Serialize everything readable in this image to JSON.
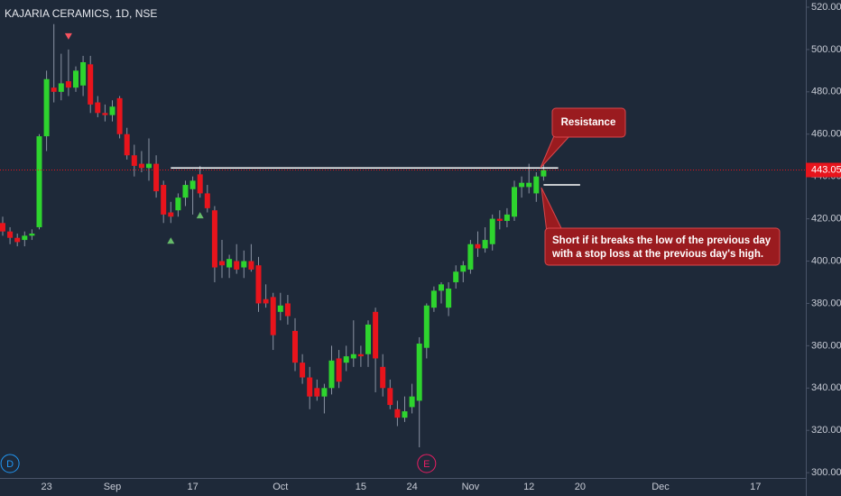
{
  "chart_data": {
    "type": "candlestick",
    "title": "KAJARIA CERAMICS, 1D, NSE",
    "categories": [
      null,
      null,
      null,
      null,
      null,
      null,
      "23",
      null,
      null,
      null,
      null,
      null,
      null,
      null,
      null,
      "Sep",
      null,
      null,
      null,
      null,
      null,
      null,
      null,
      null,
      null,
      null,
      "17",
      null,
      null,
      null,
      null,
      null,
      null,
      null,
      null,
      null,
      null,
      null,
      "Oct",
      null,
      null,
      null,
      null,
      null,
      null,
      null,
      null,
      null,
      null,
      "15",
      null,
      null,
      null,
      null,
      null,
      null,
      "24",
      null,
      null,
      null,
      null,
      null,
      null,
      null,
      "Nov",
      null,
      null,
      null,
      null,
      null,
      null,
      null,
      "12",
      null,
      null,
      null,
      null,
      null,
      null,
      "20",
      null,
      null,
      null,
      null,
      null,
      null,
      null,
      null,
      null,
      null,
      "Dec",
      null,
      null,
      null,
      null,
      null,
      null,
      null,
      null,
      null,
      null,
      null,
      null,
      "17",
      null,
      null,
      null,
      null,
      null,
      null
    ],
    "open": [
      418,
      414,
      411,
      410,
      412,
      416,
      459,
      482,
      480,
      485,
      482,
      483,
      493,
      475,
      470,
      469,
      477,
      460,
      450,
      446,
      444,
      446,
      436,
      423,
      424,
      430,
      434,
      441,
      432,
      424,
      400,
      397,
      400,
      397,
      400,
      398,
      382,
      383,
      376,
      380,
      367,
      352,
      345,
      340,
      336,
      340,
      354,
      352,
      354,
      356,
      356,
      376,
      350,
      340,
      330,
      326,
      331,
      334,
      359,
      378,
      386,
      378,
      390,
      395,
      396,
      408,
      406,
      408,
      420,
      419,
      421,
      435,
      435,
      432,
      440,
      null,
      null,
      null,
      null,
      null,
      null,
      null,
      null,
      null,
      null,
      null,
      null,
      null,
      null,
      null,
      null,
      null,
      null,
      null,
      null,
      null,
      null,
      null,
      null,
      null,
      null,
      null,
      null,
      null,
      null,
      null,
      null,
      null,
      null,
      null
    ],
    "high": [
      421,
      416,
      413,
      414,
      415,
      460,
      490,
      512,
      498,
      500,
      492,
      497,
      497,
      478,
      474,
      476,
      478,
      463,
      455,
      452,
      458,
      450,
      438,
      428,
      432,
      438,
      440,
      445,
      436,
      426,
      410,
      403,
      408,
      405,
      408,
      402,
      389,
      385,
      385,
      384,
      373,
      356,
      350,
      344,
      342,
      360,
      358,
      360,
      372,
      360,
      372,
      378,
      356,
      344,
      334,
      336,
      342,
      364,
      380,
      388,
      390,
      390,
      398,
      400,
      410,
      414,
      416,
      422,
      424,
      425,
      438,
      440,
      446,
      442,
      446,
      null,
      null,
      null,
      null,
      null,
      null,
      null,
      null,
      null,
      null,
      null,
      null,
      null,
      null,
      null,
      null,
      null,
      null,
      null,
      null,
      null,
      null,
      null,
      null,
      null,
      null,
      null,
      null,
      null,
      null,
      null,
      null,
      null,
      null,
      null
    ],
    "low": [
      412,
      408,
      407,
      407,
      410,
      415,
      452,
      475,
      476,
      478,
      480,
      478,
      470,
      468,
      466,
      466,
      458,
      448,
      440,
      442,
      438,
      430,
      418,
      418,
      421,
      426,
      422,
      430,
      423,
      390,
      392,
      392,
      394,
      392,
      395,
      376,
      378,
      358,
      372,
      370,
      348,
      342,
      330,
      334,
      328,
      337,
      340,
      348,
      350,
      350,
      350,
      338,
      336,
      330,
      322,
      324,
      328,
      312,
      354,
      376,
      380,
      374,
      387,
      390,
      394,
      402,
      404,
      405,
      415,
      416,
      419,
      430,
      432,
      428,
      438,
      null,
      null,
      null,
      null,
      null,
      null,
      null,
      null,
      null,
      null,
      null,
      null,
      null,
      null,
      null,
      null,
      null,
      null,
      null,
      null,
      null,
      null,
      null,
      null,
      null,
      null,
      null,
      null,
      null,
      null,
      null,
      null,
      null,
      null,
      null
    ],
    "close": [
      414,
      411,
      409,
      412,
      413,
      459,
      486,
      480,
      484,
      482,
      490,
      494,
      474,
      470,
      469,
      473,
      460,
      450,
      445,
      444,
      446,
      433,
      422,
      421,
      430,
      436,
      438,
      432,
      425,
      397,
      398,
      401,
      396,
      400,
      396,
      380,
      380,
      365,
      379,
      374,
      352,
      345,
      336,
      336,
      340,
      353,
      343,
      355,
      356,
      355,
      370,
      354,
      340,
      332,
      326,
      329,
      336,
      361,
      379,
      386,
      389,
      387,
      395,
      398,
      408,
      406,
      410,
      420,
      419,
      422,
      435,
      437,
      437,
      440,
      443,
      null,
      null,
      null,
      null,
      null,
      null,
      null,
      null,
      null,
      null,
      null,
      null,
      null,
      null,
      null,
      null,
      null,
      null,
      null,
      null,
      null,
      null,
      null,
      null,
      null,
      null,
      null,
      null,
      null,
      null,
      null,
      null,
      null,
      null,
      null
    ],
    "up_color": "#2ed42e",
    "down_color": "#e8141c",
    "ylim": [
      297.5,
      523.4
    ],
    "yticks": [
      {
        "value": 300,
        "label": "300.00"
      },
      {
        "value": 320,
        "label": "320.00"
      },
      {
        "value": 340,
        "label": "340.00"
      },
      {
        "value": 360,
        "label": "360.00"
      },
      {
        "value": 380,
        "label": "380.00"
      },
      {
        "value": 400,
        "label": "400.00"
      },
      {
        "value": 420,
        "label": "420.00"
      },
      {
        "value": 440,
        "label": "440.00"
      },
      {
        "value": 460,
        "label": "460.00"
      },
      {
        "value": 480,
        "label": "480.00"
      },
      {
        "value": 500,
        "label": "500.00"
      },
      {
        "value": 520,
        "label": "520.00"
      }
    ],
    "last_price": 443.05,
    "last_price_color": "#e8141c",
    "hlines": [
      {
        "value": 444,
        "from": 23,
        "to": 76,
        "color": "#ffffff"
      },
      {
        "value": 436,
        "from": 74,
        "to": 79,
        "color": "#ffffff"
      }
    ],
    "signals": [
      {
        "index": 9,
        "direction": "down",
        "color": "#f7525f"
      },
      {
        "index": 23,
        "direction": "up",
        "color": "#66bb6a"
      },
      {
        "index": 27,
        "direction": "up",
        "color": "#66bb6a"
      }
    ],
    "events": [
      {
        "index": 1,
        "label": "D",
        "color": "#2196f3"
      },
      {
        "index": 58,
        "label": "E",
        "color": "#e91e63"
      }
    ],
    "annotations": [
      {
        "text": "Resistance"
      },
      {
        "lines": [
          "Short if it breaks the low of the previous day",
          "with a stop loss at the previous day's high."
        ]
      }
    ]
  }
}
